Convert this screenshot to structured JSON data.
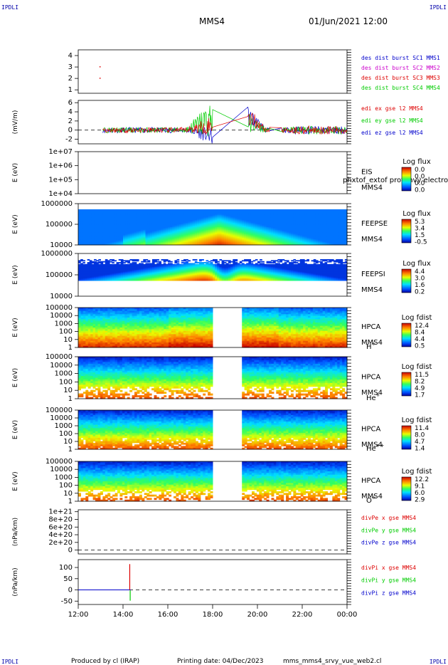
{
  "header": {
    "corner_tl": "IPDLI",
    "corner_tr": "IPDLI",
    "corner_bl": "IPDLI",
    "corner_br": "IPDLI",
    "title": "MMS4",
    "datetime": "01/Jun/2021 12:00"
  },
  "footer": {
    "produced_by": "Produced by cl (IRAP)",
    "printing_date": "Printing date: 04/Dec/2023",
    "file": "mms_mms4_srvy_vue_web2.cl"
  },
  "chart_data": [
    {
      "type": "line",
      "panel": "des_dist",
      "ylabel": "",
      "ylim": [
        0.7,
        4.5
      ],
      "ytick_labels": [
        "4",
        "3",
        "2",
        "1"
      ],
      "ytick_values": [
        4,
        3,
        2,
        1
      ],
      "series": [
        {
          "name": "des dist burst SC1 MMS1",
          "color": "#0000cc"
        },
        {
          "name": "des dist burst SC2 MMS2",
          "color": "#cc00cc"
        },
        {
          "name": "des dist burst SC3 MMS3",
          "color": "#dd0000"
        },
        {
          "name": "des dist burst SC4 MMS4",
          "color": "#00cc00"
        }
      ],
      "points": [
        {
          "series": 2,
          "x": 12.95,
          "y": 3.0
        },
        {
          "series": 2,
          "x": 12.95,
          "y": 2.0
        }
      ]
    },
    {
      "type": "line",
      "panel": "edi_e",
      "ylabel": "(mV/m)",
      "ylim": [
        -3,
        6.5
      ],
      "ytick_labels": [
        "6",
        "4",
        "2",
        "0",
        "-2"
      ],
      "ytick_values": [
        6,
        4,
        2,
        0,
        -2
      ],
      "zero_line": true,
      "series": [
        {
          "name": "edi ex gse l2 MMS4",
          "color": "#dd0000"
        },
        {
          "name": "edi ey gse l2 MMS4",
          "color": "#00cc00"
        },
        {
          "name": "edi ez gse l2 MMS4",
          "color": "#0000cc"
        }
      ]
    },
    {
      "type": "heatmap",
      "panel": "eis",
      "ylabel": "E (eV)",
      "ylog": true,
      "ytick_labels": [
        "1e+07",
        "1e+06",
        "1e+05",
        "1e+04"
      ],
      "instrument": "EIS",
      "spacecraft": "MMS4",
      "species": "phxtof_extof protonvy electron to",
      "colorbar": {
        "label": "Log flux",
        "ticks": [
          "0.0",
          "0.0",
          "0.0",
          "0.0"
        ]
      }
    },
    {
      "type": "heatmap",
      "panel": "feepse",
      "ylabel": "E (eV)",
      "ylog": true,
      "ytick_labels": [
        "1000000",
        "100000",
        "10000"
      ],
      "instrument": "FEEPSE",
      "spacecraft": "MMS4",
      "colorbar": {
        "label": "Log flux",
        "ticks": [
          "5.3",
          "3.4",
          "1.5",
          "-0.5"
        ]
      }
    },
    {
      "type": "heatmap",
      "panel": "feepsi",
      "ylabel": "E (eV)",
      "ylog": true,
      "ytick_labels": [
        "1000000",
        "100000",
        "10000"
      ],
      "instrument": "FEEPSI",
      "spacecraft": "MMS4",
      "colorbar": {
        "label": "Log flux",
        "ticks": [
          "4.4",
          "3.0",
          "1.6",
          "0.2"
        ]
      }
    },
    {
      "type": "heatmap",
      "panel": "hpca_h",
      "ylabel": "E (eV)",
      "ylog": true,
      "ytick_labels": [
        "100000",
        "10000",
        "1000",
        "100",
        "10",
        "1"
      ],
      "instrument": "HPCA",
      "spacecraft": "MMS4",
      "species": "H",
      "species_sup": "+",
      "data_gap": [
        18.0,
        19.3
      ],
      "colorbar": {
        "label": "Log fdist",
        "ticks": [
          "12.4",
          "8.4",
          "4.4",
          "0.5"
        ]
      }
    },
    {
      "type": "heatmap",
      "panel": "hpca_he1",
      "ylabel": "E (eV)",
      "ylog": true,
      "ytick_labels": [
        "100000",
        "10000",
        "1000",
        "100",
        "10",
        "1"
      ],
      "instrument": "HPCA",
      "spacecraft": "MMS4",
      "species": "He",
      "species_sup": "+",
      "data_gap": [
        18.0,
        19.3
      ],
      "colorbar": {
        "label": "Log fdist",
        "ticks": [
          "11.5",
          "8.2",
          "4.9",
          "1.7"
        ]
      }
    },
    {
      "type": "heatmap",
      "panel": "hpca_he2",
      "ylabel": "E (eV)",
      "ylog": true,
      "ytick_labels": [
        "100000",
        "10000",
        "1000",
        "100",
        "10",
        "1"
      ],
      "instrument": "HPCA",
      "spacecraft": "MMS4",
      "species": "He",
      "species_sup": "++",
      "data_gap": [
        18.0,
        19.3
      ],
      "colorbar": {
        "label": "Log fdist",
        "ticks": [
          "11.4",
          "8.0",
          "4.7",
          "1.4"
        ]
      }
    },
    {
      "type": "heatmap",
      "panel": "hpca_o",
      "ylabel": "E (eV)",
      "ylog": true,
      "ytick_labels": [
        "100000",
        "10000",
        "1000",
        "100",
        "10",
        "1"
      ],
      "instrument": "HPCA",
      "spacecraft": "MMS4",
      "species": "O",
      "species_sup": "+",
      "data_gap": [
        18.0,
        19.3
      ],
      "colorbar": {
        "label": "Log fdist",
        "ticks": [
          "12.2",
          "9.1",
          "6.0",
          "2.9"
        ]
      }
    },
    {
      "type": "line",
      "panel": "divpe",
      "ylabel": "(nPa/km)",
      "ylim": [
        -1e+20,
        1.05e+21
      ],
      "ytick_labels": [
        "1e+21",
        "8e+20",
        "6e+20",
        "4e+20",
        "2e+20",
        "0"
      ],
      "ytick_values": [
        1e+21,
        8e+20,
        6e+20,
        4e+20,
        2e+20,
        0
      ],
      "zero_line": true,
      "series": [
        {
          "name": "divPe x gse MMS4",
          "color": "#dd0000"
        },
        {
          "name": "divPe y gse MMS4",
          "color": "#00cc00"
        },
        {
          "name": "divPe z gse MMS4",
          "color": "#0000cc"
        }
      ]
    },
    {
      "type": "line",
      "panel": "divpi",
      "ylabel": "(nPa/km)",
      "ylim": [
        -65,
        135
      ],
      "ytick_labels": [
        "100",
        "50",
        "0",
        "-50"
      ],
      "ytick_values": [
        100,
        50,
        0,
        -50
      ],
      "zero_line": true,
      "series": [
        {
          "name": "divPi x gse MMS4",
          "color": "#dd0000"
        },
        {
          "name": "divPi y gse MMS4",
          "color": "#00cc00"
        },
        {
          "name": "divPi z gse MMS4",
          "color": "#0000cc"
        }
      ]
    }
  ],
  "x_axis": {
    "range": [
      12,
      24
    ],
    "tick_values": [
      12,
      14,
      16,
      18,
      20,
      22,
      24
    ],
    "tick_labels": [
      "12:00",
      "14:00",
      "16:00",
      "18:00",
      "20:00",
      "22:00",
      "00:00"
    ]
  }
}
